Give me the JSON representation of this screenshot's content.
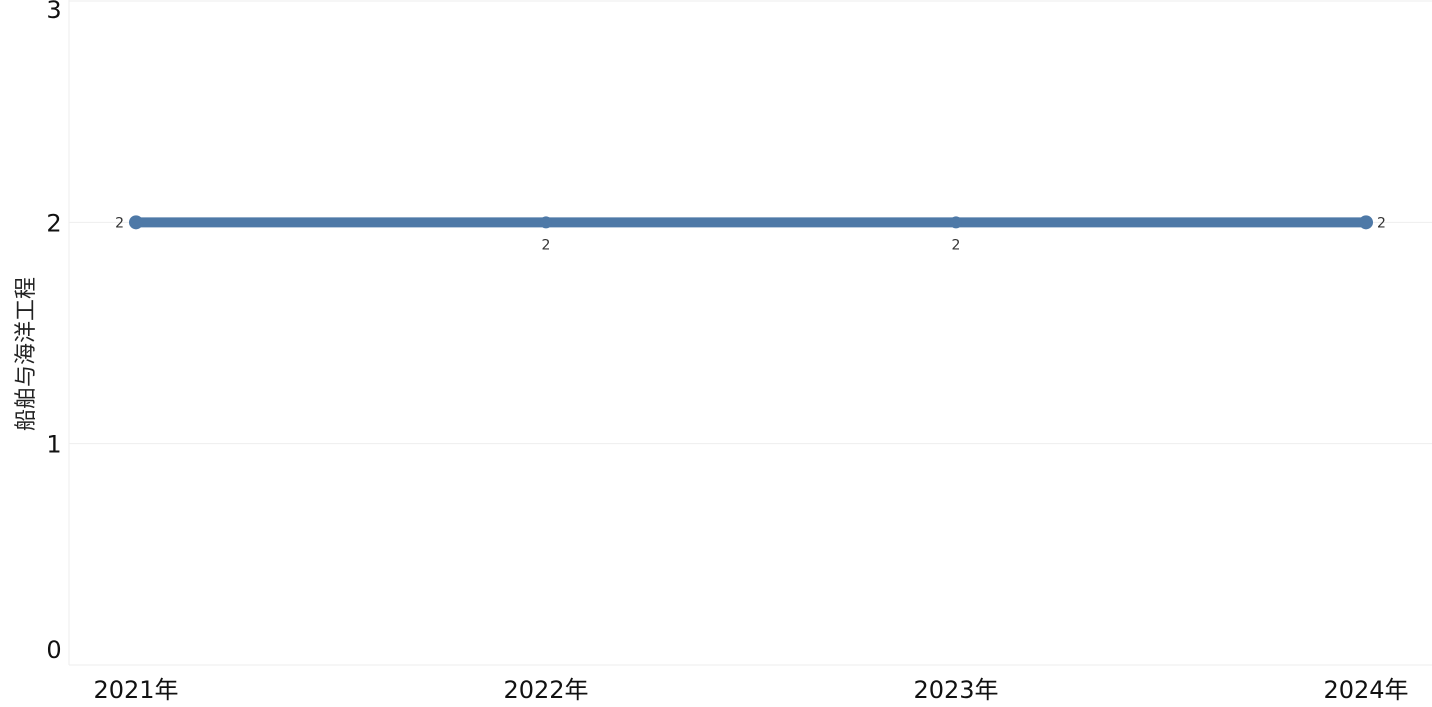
{
  "chart_data": {
    "type": "line",
    "title": "",
    "xlabel": "",
    "ylabel": "船舶与海洋工程",
    "categories": [
      "2021年",
      "2022年",
      "2023年",
      "2024年"
    ],
    "series": [
      {
        "values": [
          2,
          2,
          2,
          2
        ],
        "color": "#4e79a7"
      }
    ],
    "data_labels": [
      "2",
      "2",
      "2",
      "2"
    ],
    "y_ticks": [
      "0",
      "1",
      "2",
      "3"
    ],
    "ylim": [
      0,
      3
    ],
    "grid": true,
    "legend": "none"
  }
}
